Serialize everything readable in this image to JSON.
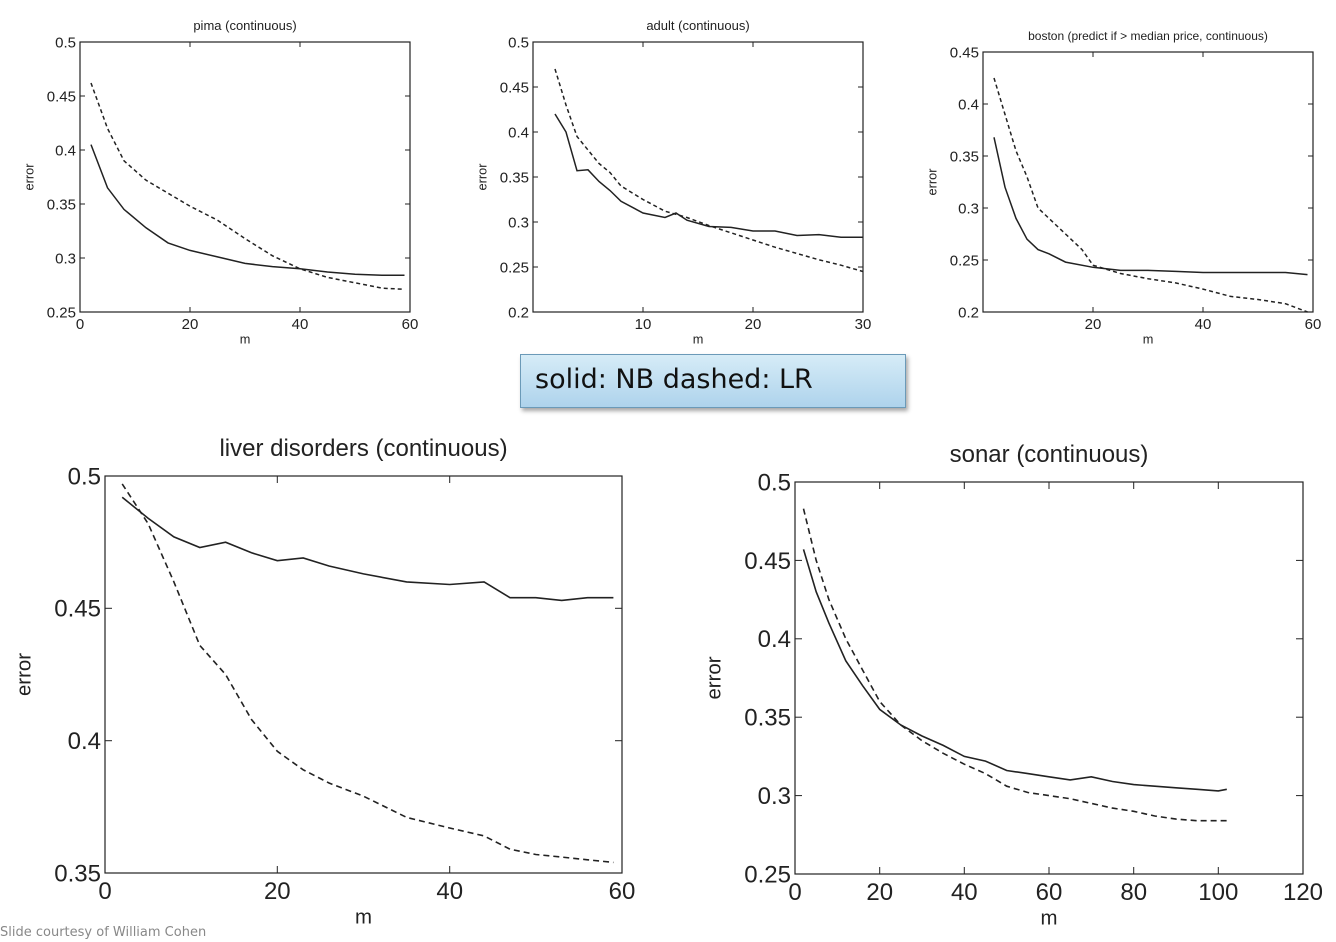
{
  "chart_data": [
    {
      "type": "line",
      "title": "pima (continuous)",
      "xlabel": "m",
      "ylabel": "error",
      "xlim": [
        0,
        60
      ],
      "ylim": [
        0.25,
        0.5
      ],
      "xticks": [
        0,
        20,
        40,
        60
      ],
      "xtick_labels": [
        "0",
        "20",
        "40",
        "60"
      ],
      "yticks": [
        0.25,
        0.3,
        0.35,
        0.4,
        0.45,
        0.5
      ],
      "ytick_labels": [
        "0.25",
        "0.3",
        "0.35",
        "0.4",
        "0.45",
        "0.5"
      ],
      "series": [
        {
          "style": "solid",
          "x": [
            2,
            5,
            8,
            12,
            16,
            20,
            25,
            30,
            35,
            40,
            45,
            50,
            55,
            59
          ],
          "y": [
            0.405,
            0.365,
            0.345,
            0.328,
            0.314,
            0.307,
            0.301,
            0.295,
            0.292,
            0.29,
            0.287,
            0.285,
            0.284,
            0.284
          ]
        },
        {
          "style": "dashed",
          "x": [
            2,
            5,
            8,
            12,
            16,
            20,
            25,
            30,
            35,
            40,
            45,
            50,
            55,
            59
          ],
          "y": [
            0.462,
            0.42,
            0.39,
            0.372,
            0.36,
            0.348,
            0.335,
            0.318,
            0.302,
            0.29,
            0.282,
            0.277,
            0.272,
            0.271
          ]
        }
      ]
    },
    {
      "type": "line",
      "title": "adult (continuous)",
      "xlabel": "m",
      "ylabel": "error",
      "xlim": [
        0,
        30
      ],
      "ylim": [
        0.2,
        0.5
      ],
      "xticks": [
        0,
        10,
        20,
        30
      ],
      "xtick_labels": [
        "",
        "10",
        "20",
        "30"
      ],
      "yticks": [
        0.2,
        0.25,
        0.3,
        0.35,
        0.4,
        0.45,
        0.5
      ],
      "ytick_labels": [
        "0.2",
        "0.25",
        "0.3",
        "0.35",
        "0.4",
        "0.45",
        "0.5"
      ],
      "series": [
        {
          "style": "solid",
          "x": [
            2,
            3,
            4,
            5,
            6,
            7,
            8,
            10,
            12,
            13,
            14,
            16,
            18,
            20,
            22,
            24,
            26,
            28,
            30
          ],
          "y": [
            0.42,
            0.4,
            0.357,
            0.358,
            0.345,
            0.335,
            0.323,
            0.31,
            0.305,
            0.31,
            0.302,
            0.295,
            0.294,
            0.29,
            0.29,
            0.285,
            0.286,
            0.283,
            0.283
          ]
        },
        {
          "style": "dashed",
          "x": [
            2,
            3,
            4,
            5,
            6,
            7,
            8,
            10,
            12,
            14,
            16,
            18,
            20,
            22,
            24,
            26,
            28,
            30
          ],
          "y": [
            0.47,
            0.43,
            0.395,
            0.38,
            0.365,
            0.355,
            0.34,
            0.325,
            0.312,
            0.305,
            0.296,
            0.288,
            0.28,
            0.272,
            0.265,
            0.258,
            0.252,
            0.245
          ]
        }
      ]
    },
    {
      "type": "line",
      "title": "boston (predict if > median price, continuous)",
      "xlabel": "m",
      "ylabel": "error",
      "xlim": [
        0,
        60
      ],
      "ylim": [
        0.2,
        0.45
      ],
      "xticks": [
        0,
        20,
        40,
        60
      ],
      "xtick_labels": [
        "",
        "20",
        "40",
        "60"
      ],
      "yticks": [
        0.2,
        0.25,
        0.3,
        0.35,
        0.4,
        0.45
      ],
      "ytick_labels": [
        "0.2",
        "0.25",
        "0.3",
        "0.35",
        "0.4",
        "0.45"
      ],
      "series": [
        {
          "style": "solid",
          "x": [
            2,
            4,
            6,
            8,
            10,
            12,
            15,
            20,
            25,
            30,
            35,
            40,
            45,
            50,
            55,
            59
          ],
          "y": [
            0.368,
            0.32,
            0.29,
            0.27,
            0.26,
            0.256,
            0.248,
            0.243,
            0.24,
            0.24,
            0.239,
            0.238,
            0.238,
            0.238,
            0.238,
            0.236
          ]
        },
        {
          "style": "dashed",
          "x": [
            2,
            4,
            6,
            8,
            10,
            12,
            15,
            18,
            20,
            25,
            30,
            35,
            40,
            45,
            50,
            55,
            59
          ],
          "y": [
            0.425,
            0.39,
            0.355,
            0.33,
            0.3,
            0.29,
            0.275,
            0.26,
            0.245,
            0.237,
            0.232,
            0.228,
            0.222,
            0.215,
            0.212,
            0.208,
            0.2
          ]
        }
      ]
    },
    {
      "type": "line",
      "title": "liver disorders (continuous)",
      "xlabel": "m",
      "ylabel": "error",
      "xlim": [
        0,
        60
      ],
      "ylim": [
        0.35,
        0.5
      ],
      "xticks": [
        0,
        20,
        40,
        60
      ],
      "xtick_labels": [
        "0",
        "20",
        "40",
        "60"
      ],
      "yticks": [
        0.35,
        0.4,
        0.45,
        0.5
      ],
      "ytick_labels": [
        "0.35",
        "0.4",
        "0.45",
        "0.5"
      ],
      "series": [
        {
          "style": "solid",
          "x": [
            2,
            5,
            8,
            11,
            14,
            17,
            20,
            23,
            26,
            30,
            35,
            40,
            44,
            47,
            50,
            53,
            56,
            59
          ],
          "y": [
            0.492,
            0.484,
            0.477,
            0.473,
            0.475,
            0.471,
            0.468,
            0.469,
            0.466,
            0.463,
            0.46,
            0.459,
            0.46,
            0.454,
            0.454,
            0.453,
            0.454,
            0.454
          ]
        },
        {
          "style": "dashed",
          "x": [
            2,
            5,
            8,
            11,
            14,
            17,
            20,
            23,
            26,
            30,
            35,
            40,
            44,
            47,
            50,
            53,
            56,
            59
          ],
          "y": [
            0.497,
            0.482,
            0.46,
            0.436,
            0.425,
            0.408,
            0.396,
            0.389,
            0.384,
            0.379,
            0.371,
            0.367,
            0.364,
            0.359,
            0.357,
            0.356,
            0.355,
            0.354
          ]
        }
      ]
    },
    {
      "type": "line",
      "title": "sonar (continuous)",
      "xlabel": "m",
      "ylabel": "error",
      "xlim": [
        0,
        120
      ],
      "ylim": [
        0.25,
        0.5
      ],
      "xticks": [
        0,
        20,
        40,
        60,
        80,
        100,
        120
      ],
      "xtick_labels": [
        "0",
        "20",
        "40",
        "60",
        "80",
        "100",
        "120"
      ],
      "yticks": [
        0.25,
        0.3,
        0.35,
        0.4,
        0.45,
        0.5
      ],
      "ytick_labels": [
        "0.25",
        "0.3",
        "0.35",
        "0.4",
        "0.45",
        "0.5"
      ],
      "series": [
        {
          "style": "solid",
          "x": [
            2,
            5,
            8,
            12,
            16,
            20,
            25,
            30,
            35,
            40,
            45,
            50,
            55,
            60,
            65,
            70,
            75,
            80,
            85,
            90,
            95,
            100,
            102
          ],
          "y": [
            0.457,
            0.43,
            0.41,
            0.386,
            0.37,
            0.355,
            0.345,
            0.338,
            0.332,
            0.325,
            0.322,
            0.316,
            0.314,
            0.312,
            0.31,
            0.312,
            0.309,
            0.307,
            0.306,
            0.305,
            0.304,
            0.303,
            0.304
          ]
        },
        {
          "style": "dashed",
          "x": [
            2,
            5,
            8,
            12,
            16,
            20,
            25,
            30,
            35,
            40,
            45,
            50,
            55,
            60,
            65,
            70,
            75,
            80,
            85,
            90,
            95,
            100,
            102
          ],
          "y": [
            0.483,
            0.45,
            0.425,
            0.4,
            0.38,
            0.36,
            0.345,
            0.335,
            0.327,
            0.32,
            0.314,
            0.306,
            0.302,
            0.3,
            0.298,
            0.295,
            0.292,
            0.29,
            0.287,
            0.285,
            0.284,
            0.284,
            0.284
          ]
        }
      ]
    }
  ],
  "legend_note": "solid: NB dashed: LR",
  "credit": "Slide courtesy of William Cohen"
}
